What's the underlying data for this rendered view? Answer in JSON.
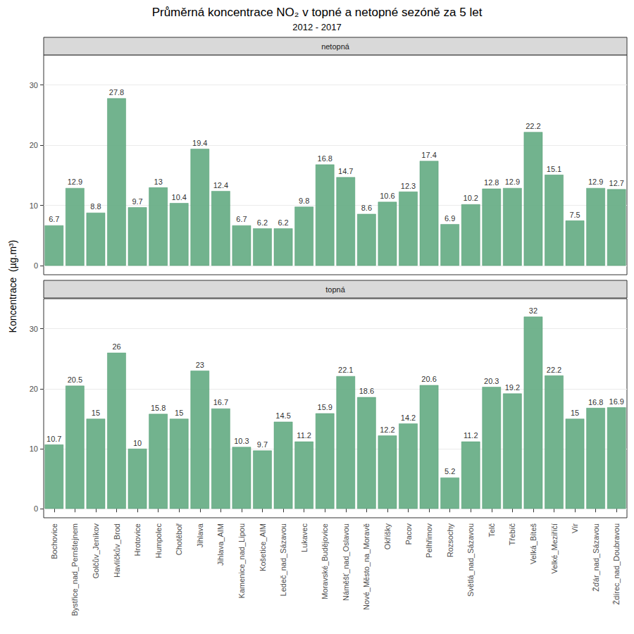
{
  "chart_data": {
    "type": "bar",
    "title": "Průměrná koncentrace NO₂ v topné a netopné sezóně za 5 let",
    "subtitle": "2012 - 2017",
    "y_label": "Koncentrace  (µg.m³)",
    "categories": [
      "Bochovice",
      "Bystřice_nad_Pernštejnem",
      "Golčův_Jeníkov",
      "Havlíčkův_Brod",
      "Hrotovice",
      "Humpolec",
      "Chotěboř",
      "Jihlava",
      "Jihlava_AIM",
      "Kamenice_nad_Lipou",
      "Košetice_AIM",
      "Ledeč_nad_Sázavou",
      "Lukavec",
      "Moravské_Budějovice",
      "Náměšť_nad_Oslavou",
      "Nové_Město_na_Moravě",
      "Okříšky",
      "Pacov",
      "Pelhřimov",
      "Rozsochy",
      "Světlá_nad_Sázavou",
      "Telč",
      "Třebíč",
      "Velká_Bíteš",
      "Velké_Meziříčí",
      "Vír",
      "Žďár_nad_Sázavou",
      "Ždírec_nad_Doubravou"
    ],
    "series": [
      {
        "name": "netopná",
        "color": "#6aaf88",
        "values": [
          6.7,
          12.9,
          8.8,
          27.8,
          9.7,
          13,
          10.4,
          19.4,
          12.4,
          6.7,
          6.2,
          6.2,
          9.8,
          16.8,
          14.7,
          8.6,
          10.6,
          12.3,
          17.4,
          6.9,
          10.2,
          12.8,
          12.9,
          22.2,
          15.1,
          7.5,
          12.9,
          12.7
        ]
      },
      {
        "name": "topná",
        "color": "#6aaf88",
        "values": [
          10.7,
          20.5,
          15,
          26,
          10,
          15.8,
          15,
          23,
          16.7,
          10.3,
          9.7,
          14.5,
          11.2,
          15.9,
          22.1,
          18.6,
          12.2,
          14.2,
          20.6,
          5.2,
          11.2,
          20.3,
          19.2,
          32,
          22.2,
          15,
          16.8,
          16.9
        ]
      }
    ],
    "ylim": [
      -1.5,
      35
    ],
    "yticks": [
      0,
      10,
      20,
      30
    ],
    "grid": true,
    "data_labels": true
  }
}
